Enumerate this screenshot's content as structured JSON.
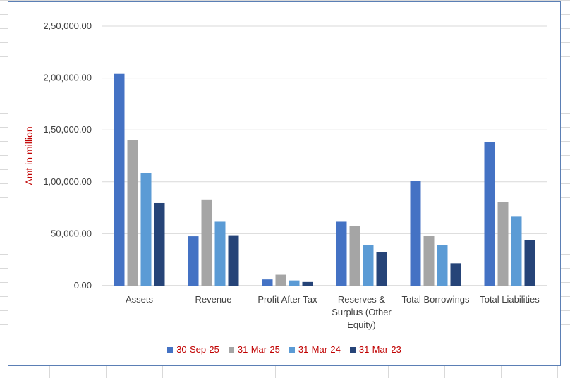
{
  "chart_data": {
    "type": "bar",
    "categories": [
      [
        "Assets"
      ],
      [
        "Revenue"
      ],
      [
        "Profit After Tax"
      ],
      [
        "Reserves &",
        "Surplus (Other",
        "Equity)"
      ],
      [
        "Total Borrowings"
      ],
      [
        "Total Liabilities"
      ]
    ],
    "series": [
      {
        "name": "30-Sep-25",
        "color": "#4472C4",
        "values": [
          204000,
          47500,
          6000,
          61500,
          101000,
          138500
        ]
      },
      {
        "name": "31-Mar-25",
        "color": "#A5A5A5",
        "values": [
          140500,
          83000,
          10500,
          57500,
          48000,
          80500
        ]
      },
      {
        "name": "31-Mar-24",
        "color": "#5B9BD5",
        "values": [
          108500,
          61500,
          5000,
          39000,
          39000,
          67000
        ]
      },
      {
        "name": "31-Mar-23",
        "color": "#264478",
        "values": [
          79500,
          48500,
          3500,
          32500,
          21500,
          44000
        ]
      }
    ],
    "ylabel": "Amt in million",
    "ylabel_color": "#C00000",
    "legend_text_color": "#C00000",
    "ylim": [
      0,
      250000
    ],
    "yticks": [
      0,
      50000,
      100000,
      150000,
      200000,
      250000
    ],
    "ytick_labels": [
      "0.00",
      "50,000.00",
      "1,00,000.00",
      "1,50,000.00",
      "2,00,000.00",
      "2,50,000.00"
    ],
    "grid": true,
    "legend_position": "bottom"
  }
}
